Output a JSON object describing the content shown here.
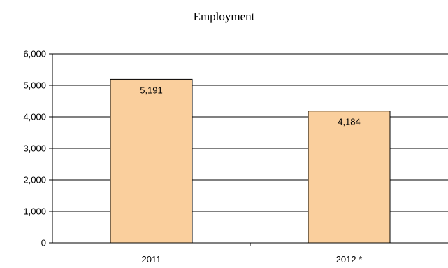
{
  "chart_data": {
    "type": "bar",
    "title": "Employment",
    "xlabel": "",
    "ylabel": "",
    "categories": [
      "2011",
      "2012 *"
    ],
    "values": [
      5191,
      4184
    ],
    "value_labels": [
      "5,191",
      "4,184"
    ],
    "ylim": [
      0,
      6000
    ],
    "yticks": [
      0,
      1000,
      2000,
      3000,
      4000,
      5000,
      6000
    ],
    "ytick_labels": [
      "0",
      "1,000",
      "2,000",
      "3,000",
      "4,000",
      "5,000",
      "6,000"
    ],
    "grid": true,
    "legend": "none",
    "bar_color": "#FACF9D",
    "bar_edge_color": "#000000"
  }
}
